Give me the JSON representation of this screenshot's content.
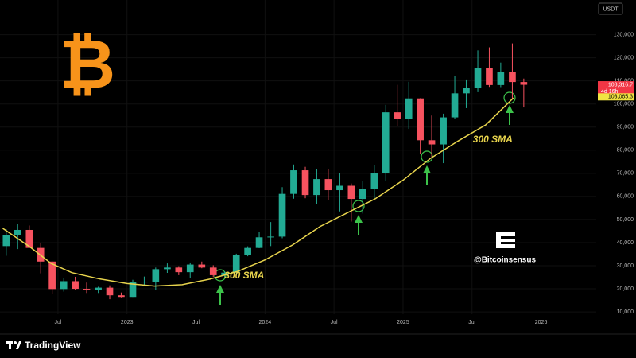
{
  "chart_data": {
    "type": "candlestick",
    "currency": "USDT",
    "logo_symbol": "₿",
    "handle": "@Bitcoinsensus",
    "footer": "TradingView",
    "up_color": "#22ab94",
    "down_color": "#f7525f",
    "x": [
      2022.125,
      2022.208,
      2022.292,
      2022.375,
      2022.458,
      2022.542,
      2022.625,
      2022.708,
      2022.792,
      2022.875,
      2022.958,
      2023.042,
      2023.125,
      2023.208,
      2023.292,
      2023.375,
      2023.458,
      2023.542,
      2023.625,
      2023.708,
      2023.792,
      2023.875,
      2023.958,
      2024.042,
      2024.125,
      2024.208,
      2024.292,
      2024.375,
      2024.458,
      2024.542,
      2024.625,
      2024.708,
      2024.792,
      2024.875,
      2024.958,
      2025.042,
      2025.125,
      2025.208,
      2025.292,
      2025.375,
      2025.458,
      2025.542,
      2025.625,
      2025.708,
      2025.792,
      2025.875
    ],
    "open": [
      38500,
      43200,
      45500,
      37700,
      31800,
      19900,
      23300,
      20000,
      19400,
      20500,
      17200,
      16500,
      23100,
      23100,
      28500,
      29200,
      27200,
      30500,
      29200,
      25900,
      27000,
      34600,
      37700,
      42300,
      42600,
      61100,
      71300,
      60600,
      67500,
      62700,
      64600,
      58900,
      63300,
      70200,
      96400,
      93400,
      102400,
      84300,
      82500,
      94200,
      104600,
      107100,
      115700,
      108200,
      114000,
      109500
    ],
    "high": [
      45800,
      48200,
      47400,
      40000,
      31900,
      24700,
      25200,
      22700,
      20900,
      21500,
      18400,
      23900,
      25300,
      29200,
      31000,
      29800,
      31400,
      31800,
      30200,
      27500,
      35200,
      38400,
      44700,
      48900,
      64000,
      73800,
      72800,
      71900,
      72000,
      70000,
      65600,
      66500,
      73600,
      99600,
      108300,
      109600,
      102500,
      95000,
      95800,
      112000,
      110600,
      123200,
      124500,
      117900,
      126200,
      111000
    ],
    "low": [
      34300,
      37200,
      37700,
      26700,
      17600,
      18800,
      19600,
      18200,
      18200,
      15500,
      16300,
      16500,
      21400,
      19600,
      26900,
      25900,
      24800,
      28900,
      25200,
      24900,
      26600,
      34100,
      37600,
      38500,
      41900,
      59000,
      59200,
      56600,
      58400,
      53500,
      49100,
      52600,
      58900,
      66800,
      90500,
      89200,
      78200,
      76600,
      74400,
      93400,
      98200,
      105100,
      107400,
      107300,
      102000,
      98500
    ],
    "close": [
      43200,
      45500,
      37700,
      31800,
      19900,
      23300,
      20000,
      19400,
      20500,
      17200,
      16500,
      23100,
      23100,
      28500,
      29200,
      27200,
      30500,
      29200,
      25900,
      27000,
      34600,
      37700,
      42300,
      42600,
      61100,
      71300,
      60600,
      67500,
      62700,
      64600,
      58900,
      63300,
      70200,
      96400,
      93400,
      102400,
      84300,
      82500,
      94200,
      104600,
      107100,
      115700,
      108200,
      114000,
      109500,
      108316.7
    ],
    "sma": {
      "color": "#e8d44d",
      "x": [
        2022.1,
        2022.3,
        2022.45,
        2022.6,
        2022.8,
        2023.0,
        2023.2,
        2023.4,
        2023.6,
        2023.8,
        2024.0,
        2024.2,
        2024.4,
        2024.6,
        2024.8,
        2025.0,
        2025.2,
        2025.4,
        2025.6,
        2025.8
      ],
      "values": [
        46200,
        38000,
        31000,
        27000,
        24300,
        22300,
        21200,
        21800,
        24200,
        27500,
        32500,
        39000,
        47000,
        53000,
        59000,
        67000,
        76500,
        84000,
        91000,
        102600
      ]
    },
    "annotations": [
      {
        "text": "300 SMA",
        "x": 2023.85,
        "y": 25500
      },
      {
        "text": "300 SMA",
        "x": 2025.65,
        "y": 84500
      }
    ],
    "price_labels": [
      {
        "value": 108316.7,
        "label": "108,316.7",
        "countdown": "4d 16h",
        "color": "#f23645"
      },
      {
        "value": 103065.3,
        "label": "103,065.3",
        "color": "#f0e442"
      }
    ],
    "xlim": [
      2022.08,
      2026.4
    ],
    "ylim": [
      9000,
      145000
    ],
    "xticks": [
      {
        "value": 2022.5,
        "label": "Jul"
      },
      2023,
      {
        "value": 2023.5,
        "label": "Jul"
      },
      2024,
      {
        "value": 2024.5,
        "label": "Jul"
      },
      2025,
      {
        "value": 2025.5,
        "label": "Jul"
      },
      2026
    ],
    "yticks": [
      {
        "value": 10000,
        "label": "10,000"
      },
      {
        "value": 20000,
        "label": "20,000"
      },
      {
        "value": 30000,
        "label": "30,000"
      },
      {
        "value": 40000,
        "label": "40,000"
      },
      {
        "value": 50000,
        "label": "50,000"
      },
      {
        "value": 60000,
        "label": "60,000"
      },
      {
        "value": 70000,
        "label": "70,000"
      },
      {
        "value": 80000,
        "label": "80,000"
      },
      {
        "value": 90000,
        "label": "90,000"
      },
      {
        "value": 100000,
        "label": "100,000"
      },
      {
        "value": 110000,
        "label": "110,000"
      },
      {
        "value": 120000,
        "label": "120,000"
      },
      {
        "value": 130000,
        "label": "130,000"
      }
    ]
  }
}
